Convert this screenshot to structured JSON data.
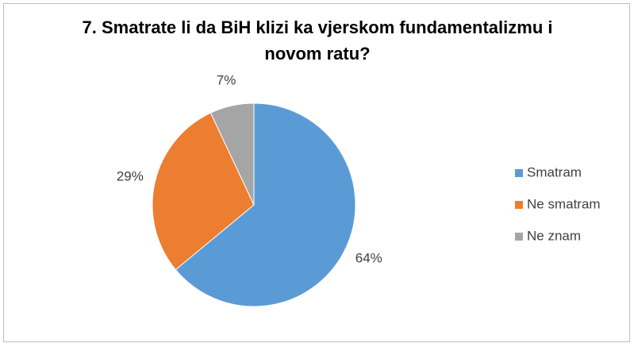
{
  "chart_data": {
    "type": "pie",
    "title": "7. Smatrate li da BiH klizi ka vjerskom fundamentalizmu i novom ratu?",
    "categories": [
      "Smatram",
      "Ne smatram",
      "Ne znam"
    ],
    "values": [
      64,
      29,
      7
    ],
    "value_labels": [
      "64%",
      "29%",
      "7%"
    ],
    "colors": [
      "#5b9bd5",
      "#ed7d31",
      "#a5a5a5"
    ],
    "legend": "right"
  }
}
